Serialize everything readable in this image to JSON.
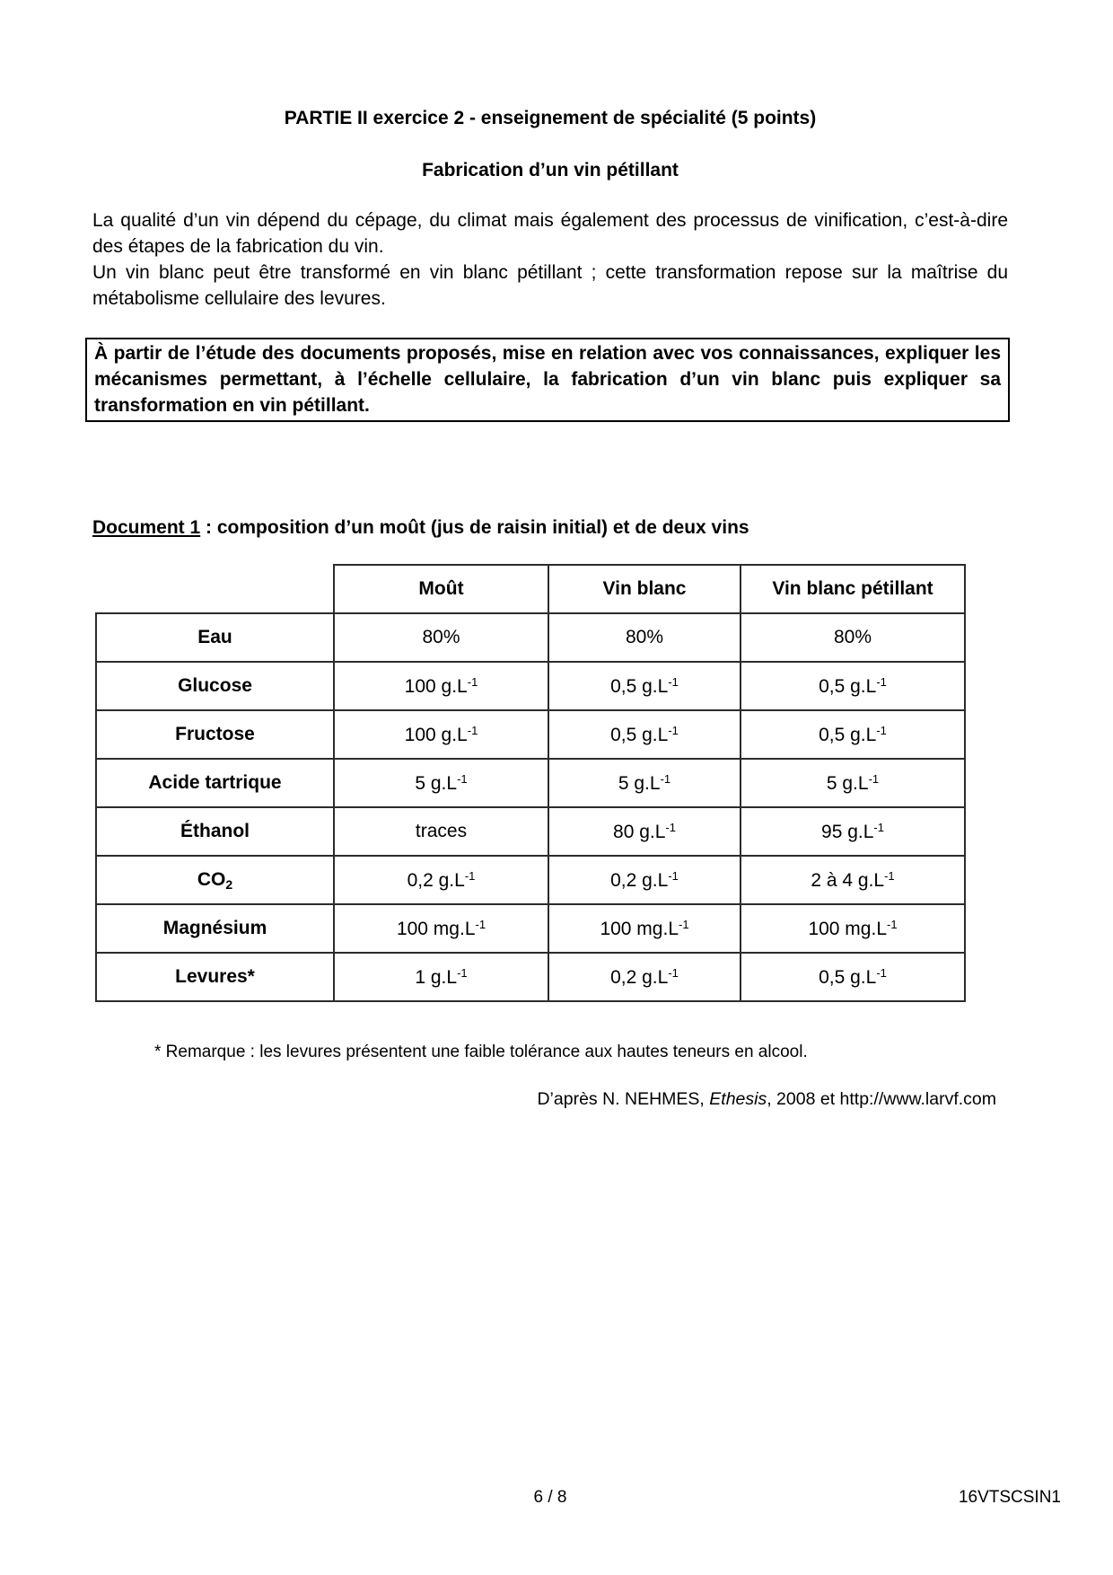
{
  "page": {
    "title": "PARTIE II exercice 2 - enseignement de spécialité (5 points)",
    "subtitle": "Fabrication d’un vin pétillant",
    "intro_paragraphs": [
      "La qualité d’un vin dépend du cépage, du climat mais également des processus de vinification, c’est-à-dire des étapes de la fabrication du vin.",
      "Un vin blanc peut être transformé en vin blanc pétillant ; cette transformation repose sur la maîtrise du métabolisme cellulaire des levures."
    ],
    "task_box": "À partir de l’étude des documents proposés, mise en relation avec vos connaissances, expliquer les mécanismes permettant, à l’échelle cellulaire, la fabrication d’un vin blanc puis expliquer sa transformation en vin pétillant.",
    "footer": {
      "page_number": "6 / 8",
      "reference_code": "16VTSCSIN1"
    }
  },
  "document1": {
    "heading_underlined": "Document 1",
    "heading_rest": " : composition d’un moût (jus de raisin initial) et de deux vins",
    "table": {
      "columns": [
        {
          "label": "Moût"
        },
        {
          "label": "Vin blanc"
        },
        {
          "label": "Vin blanc pétillant"
        }
      ],
      "rows": [
        {
          "label": "Eau",
          "cells": [
            {
              "v": "80%"
            },
            {
              "v": "80%"
            },
            {
              "v": "80%"
            }
          ]
        },
        {
          "label": "Glucose",
          "cells": [
            {
              "v": "100 g.L",
              "sup": "-1"
            },
            {
              "v": "0,5 g.L",
              "sup": "-1"
            },
            {
              "v": "0,5 g.L",
              "sup": "-1"
            }
          ]
        },
        {
          "label": "Fructose",
          "cells": [
            {
              "v": "100 g.L",
              "sup": "-1"
            },
            {
              "v": "0,5 g.L",
              "sup": "-1"
            },
            {
              "v": "0,5 g.L",
              "sup": "-1"
            }
          ]
        },
        {
          "label": "Acide tartrique",
          "cells": [
            {
              "v": "5 g.L",
              "sup": "-1"
            },
            {
              "v": "5 g.L",
              "sup": "-1"
            },
            {
              "v": "5 g.L",
              "sup": "-1"
            }
          ]
        },
        {
          "label": "Éthanol",
          "cells": [
            {
              "v": "traces"
            },
            {
              "v": "80 g.L",
              "sup": "-1"
            },
            {
              "v": "95 g.L",
              "sup": "-1"
            }
          ]
        },
        {
          "label": "CO",
          "label_sub": "2",
          "cells": [
            {
              "v": "0,2 g.L",
              "sup": "-1"
            },
            {
              "v": "0,2 g.L",
              "sup": "-1"
            },
            {
              "v": "2 à 4 g.L",
              "sup": "-1"
            }
          ]
        },
        {
          "label": "Magnésium",
          "cells": [
            {
              "v": "100 mg.L",
              "sup": "-1"
            },
            {
              "v": "100 mg.L",
              "sup": "-1"
            },
            {
              "v": "100 mg.L",
              "sup": "-1"
            }
          ]
        },
        {
          "label": "Levures*",
          "cells": [
            {
              "v": "1 g.L",
              "sup": "-1"
            },
            {
              "v": "0,2 g.L",
              "sup": "-1"
            },
            {
              "v": "0,5 g.L",
              "sup": "-1"
            }
          ]
        }
      ]
    },
    "footnote": "* Remarque : les levures présentent une faible tolérance aux hautes teneurs en alcool.",
    "source": {
      "prefix": "D’après N. NEHMES, ",
      "italic": "Ethesis",
      "suffix": ", 2008 et http://www.larvf.com"
    }
  }
}
